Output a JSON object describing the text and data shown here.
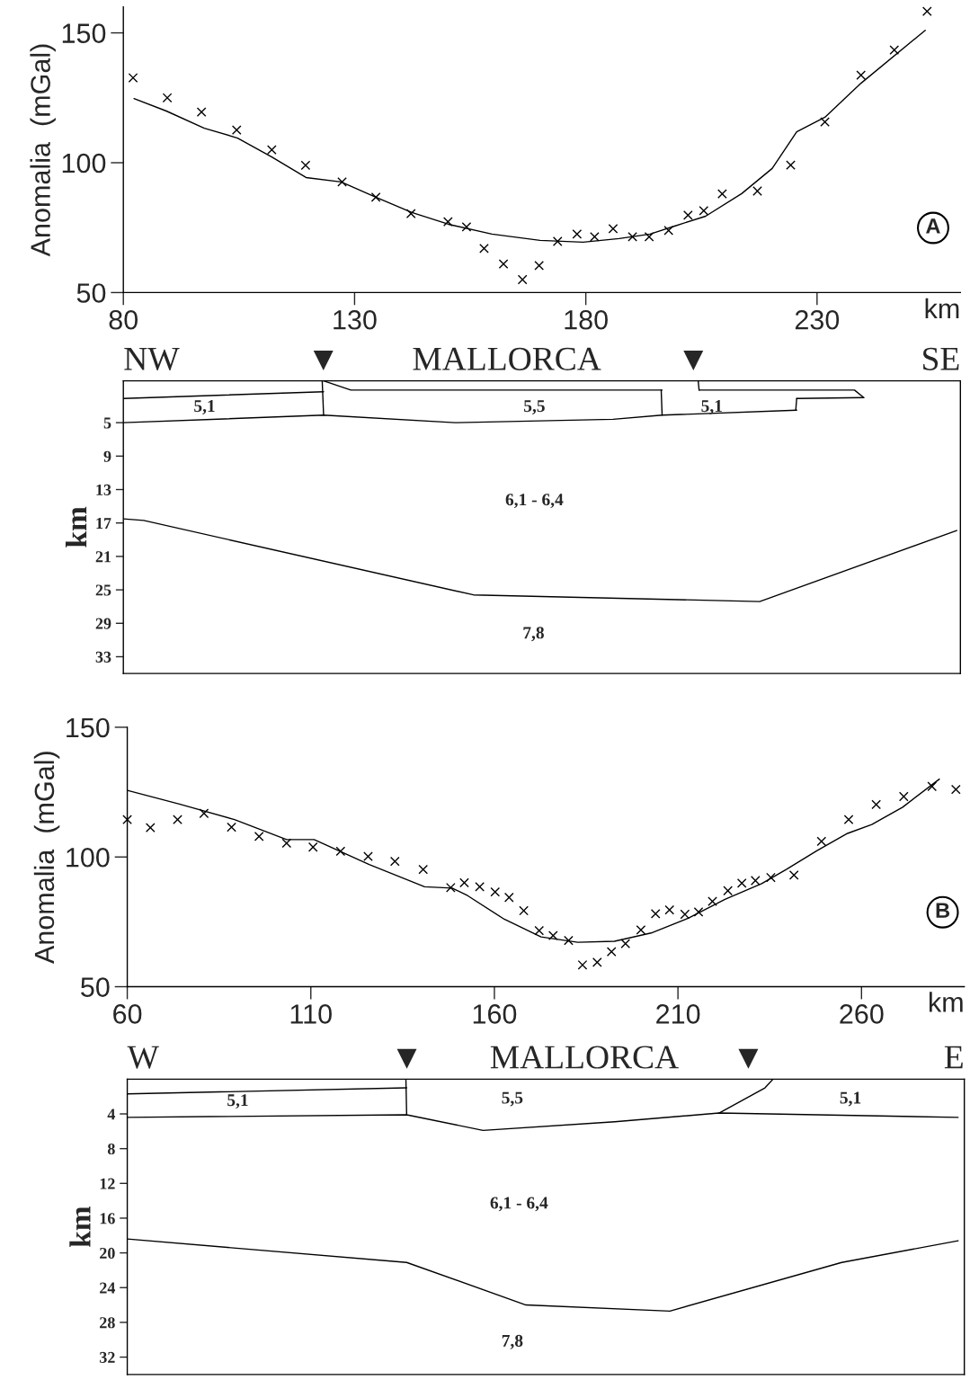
{
  "chart_data": [
    {
      "type": "line",
      "ylabel": "Anomalia  (mGal)",
      "xlabel": "km",
      "xlim": [
        80,
        261
      ],
      "xticks": [
        80,
        130,
        180,
        230
      ],
      "ylim": [
        50,
        160
      ],
      "yticks": [
        50,
        100,
        150
      ],
      "grid": false,
      "annotations": [
        {
          "text": "A",
          "x": 255.1,
          "y": 74.9
        }
      ],
      "series": [
        {
          "type": "scatter",
          "marker": "cross",
          "color": "#000000",
          "x": [
            82.1,
            89.5,
            96.9,
            104.5,
            112.1,
            119.4,
            127.3,
            134.6,
            142.2,
            150.2,
            154.2,
            158,
            162.2,
            166.3,
            169.9,
            173.9,
            178.1,
            181.9,
            185.9,
            190.1,
            193.7,
            197.9,
            202.1,
            205.5,
            209.5,
            217.1,
            224.3,
            231.7,
            239.5,
            246.7,
            253.8
          ],
          "values": [
            132.7,
            125,
            119.5,
            112.6,
            105,
            99,
            92.6,
            86.7,
            80.4,
            77.3,
            75.3,
            67,
            61,
            55,
            60.4,
            69.7,
            72.5,
            71.5,
            74.6,
            71.5,
            71.5,
            73.9,
            79.8,
            81.5,
            88,
            89.1,
            99.1,
            115.7,
            133.7,
            143.4,
            158.3
          ]
        },
        {
          "type": "line",
          "line_style": "solid",
          "color": "#000000",
          "x": [
            82.3,
            89.3,
            97.5,
            104.7,
            112.1,
            119.5,
            127.1,
            134.6,
            142.4,
            150.3,
            159.7,
            170.1,
            179.4,
            187.2,
            193.9,
            199.2,
            205.9,
            213.7,
            220.3,
            225.6,
            231.7,
            239.5,
            253.4
          ],
          "values": [
            124.7,
            119.9,
            113.3,
            109.5,
            102.2,
            94.3,
            92.6,
            86.7,
            80.8,
            76.3,
            72.5,
            70.1,
            69.4,
            70.8,
            72.5,
            75.6,
            79.4,
            88.1,
            97.8,
            111.9,
            117.5,
            130.6,
            151
          ]
        }
      ]
    },
    {
      "type": "line",
      "ylabel": "km",
      "xlim": [
        80,
        261
      ],
      "ylim": [
        35,
        0
      ],
      "yticks": [
        5,
        9,
        13,
        17,
        21,
        25,
        29,
        33
      ],
      "tick_labels": "y",
      "grid": false,
      "annotations": [
        "NW",
        "▼",
        "MALLORCA",
        "▼",
        "SE",
        "5,1",
        "5,5",
        "5,1",
        "6,1 - 6,4",
        "7,8"
      ],
      "series": [
        {
          "color": "#000000",
          "x": [
            80,
            123.3
          ],
          "values": [
            2.1,
            1.3
          ]
        },
        {
          "color": "#000000",
          "x": [
            123,
            123.3
          ],
          "values": [
            0,
            4.1
          ]
        },
        {
          "color": "#000000",
          "x": [
            80,
            123.3,
            151.7,
            185.9,
            196.5,
            225.6
          ],
          "values": [
            5.0,
            4.1,
            5.0,
            4.6,
            4.1,
            3.5
          ]
        },
        {
          "color": "#000000",
          "x": [
            123.3,
            129.2,
            196.5
          ],
          "values": [
            0,
            1.1,
            1.1
          ]
        },
        {
          "color": "#000000",
          "x": [
            196.3,
            196.5
          ],
          "values": [
            1.1,
            4.1
          ]
        },
        {
          "color": "#000000",
          "x": [
            204.3,
            204.5
          ],
          "values": [
            0,
            1.1
          ]
        },
        {
          "color": "#000000",
          "x": [
            204.5,
            238.1,
            240.1
          ],
          "values": [
            1.1,
            1.1,
            2.0
          ]
        },
        {
          "color": "#000000",
          "x": [
            225.4,
            225.6
          ],
          "values": [
            3.5,
            2.1
          ]
        },
        {
          "color": "#000000",
          "x": [
            225.6,
            240.1
          ],
          "values": [
            2.1,
            2.0
          ]
        },
        {
          "color": "#000000",
          "x": [
            80,
            84.4,
            155.7,
            217.6,
            260.2
          ],
          "values": [
            16.5,
            16.7,
            25.6,
            26.4,
            17.9
          ]
        }
      ]
    },
    {
      "type": "line",
      "ylabel": "Anomalia  (mGal)",
      "xlabel": "km",
      "xlim": [
        60,
        288
      ],
      "xticks": [
        60,
        110,
        160,
        210,
        260
      ],
      "ylim": [
        50,
        150
      ],
      "yticks": [
        50,
        100,
        150
      ],
      "grid": false,
      "annotations": [
        {
          "text": "B",
          "x": 282.1,
          "y": 78.7
        }
      ],
      "series": [
        {
          "type": "scatter",
          "marker": "cross",
          "color": "#000000",
          "x": [
            60,
            66.3,
            73.7,
            80.9,
            88.4,
            95.9,
            103.4,
            110.6,
            118.1,
            125.6,
            132.9,
            140.6,
            148.1,
            151.8,
            156,
            160.2,
            164,
            168,
            172.2,
            176,
            180.2,
            184,
            188,
            191.9,
            195.7,
            199.9,
            203.9,
            207.7,
            211.9,
            215.6,
            219.4,
            223.6,
            227.4,
            231.1,
            235.3,
            241.6,
            249.1,
            256.5,
            264,
            271.5,
            279.2,
            285.7
          ],
          "values": [
            114.4,
            111.3,
            114.4,
            116.8,
            111.5,
            107.9,
            105.3,
            103.8,
            102.2,
            100.2,
            98.3,
            95.2,
            88.2,
            90.1,
            88.5,
            86.5,
            84.4,
            79.3,
            71.6,
            69.7,
            67.8,
            58.4,
            59.4,
            63.5,
            66.6,
            71.9,
            78.1,
            79.6,
            77.9,
            78.8,
            82.9,
            87,
            89.9,
            90.9,
            92.1,
            93,
            106,
            114.4,
            120.2,
            123.3,
            127.2,
            126
          ]
        },
        {
          "type": "line",
          "line_style": "solid",
          "color": "#000000",
          "x": [
            60,
            74.2,
            89.2,
            103.4,
            110.9,
            125.9,
            141,
            148.5,
            152.7,
            162.7,
            172.7,
            182.7,
            192.7,
            202.7,
            212.8,
            222.8,
            232.8,
            239.5,
            247.8,
            256.2,
            262.8,
            271.2,
            281.2
          ],
          "values": [
            125.7,
            120.4,
            114.4,
            106.7,
            106.7,
            97.1,
            88.5,
            88,
            85.1,
            76,
            69.2,
            67.1,
            67.5,
            70.7,
            76.4,
            83.7,
            89.7,
            95.2,
            102.4,
            109.1,
            112.5,
            119.2,
            130
          ]
        }
      ]
    },
    {
      "type": "line",
      "ylabel": "km",
      "xlim": [
        60,
        288
      ],
      "ylim": [
        34,
        0
      ],
      "yticks": [
        4,
        8,
        12,
        16,
        20,
        24,
        28,
        32
      ],
      "tick_labels": "y",
      "grid": false,
      "annotations": [
        "W",
        "▼",
        "MALLORCA",
        "▼",
        "E",
        "5,1",
        "5,5",
        "5,1",
        "6,1 - 6,4",
        "7,8"
      ],
      "series": [
        {
          "color": "#000000",
          "x": [
            60,
            136.1
          ],
          "values": [
            1.7,
            1.0
          ]
        },
        {
          "color": "#000000",
          "x": [
            135.9,
            136.1
          ],
          "values": [
            0,
            4.1
          ]
        },
        {
          "color": "#000000",
          "x": [
            60,
            136.1,
            156.9,
            192.8,
            221.2,
            286.3
          ],
          "values": [
            4.4,
            4.1,
            5.9,
            4.9,
            3.9,
            4.4
          ]
        },
        {
          "color": "#000000",
          "x": [
            221.2,
            233.7,
            235.9
          ],
          "values": [
            3.9,
            1.0,
            0
          ]
        },
        {
          "color": "#000000",
          "x": [
            60,
            136.1,
            168.6,
            207.8,
            254.6,
            286.3
          ],
          "values": [
            18.4,
            21.1,
            26.0,
            26.7,
            21.1,
            18.6
          ]
        }
      ]
    }
  ]
}
